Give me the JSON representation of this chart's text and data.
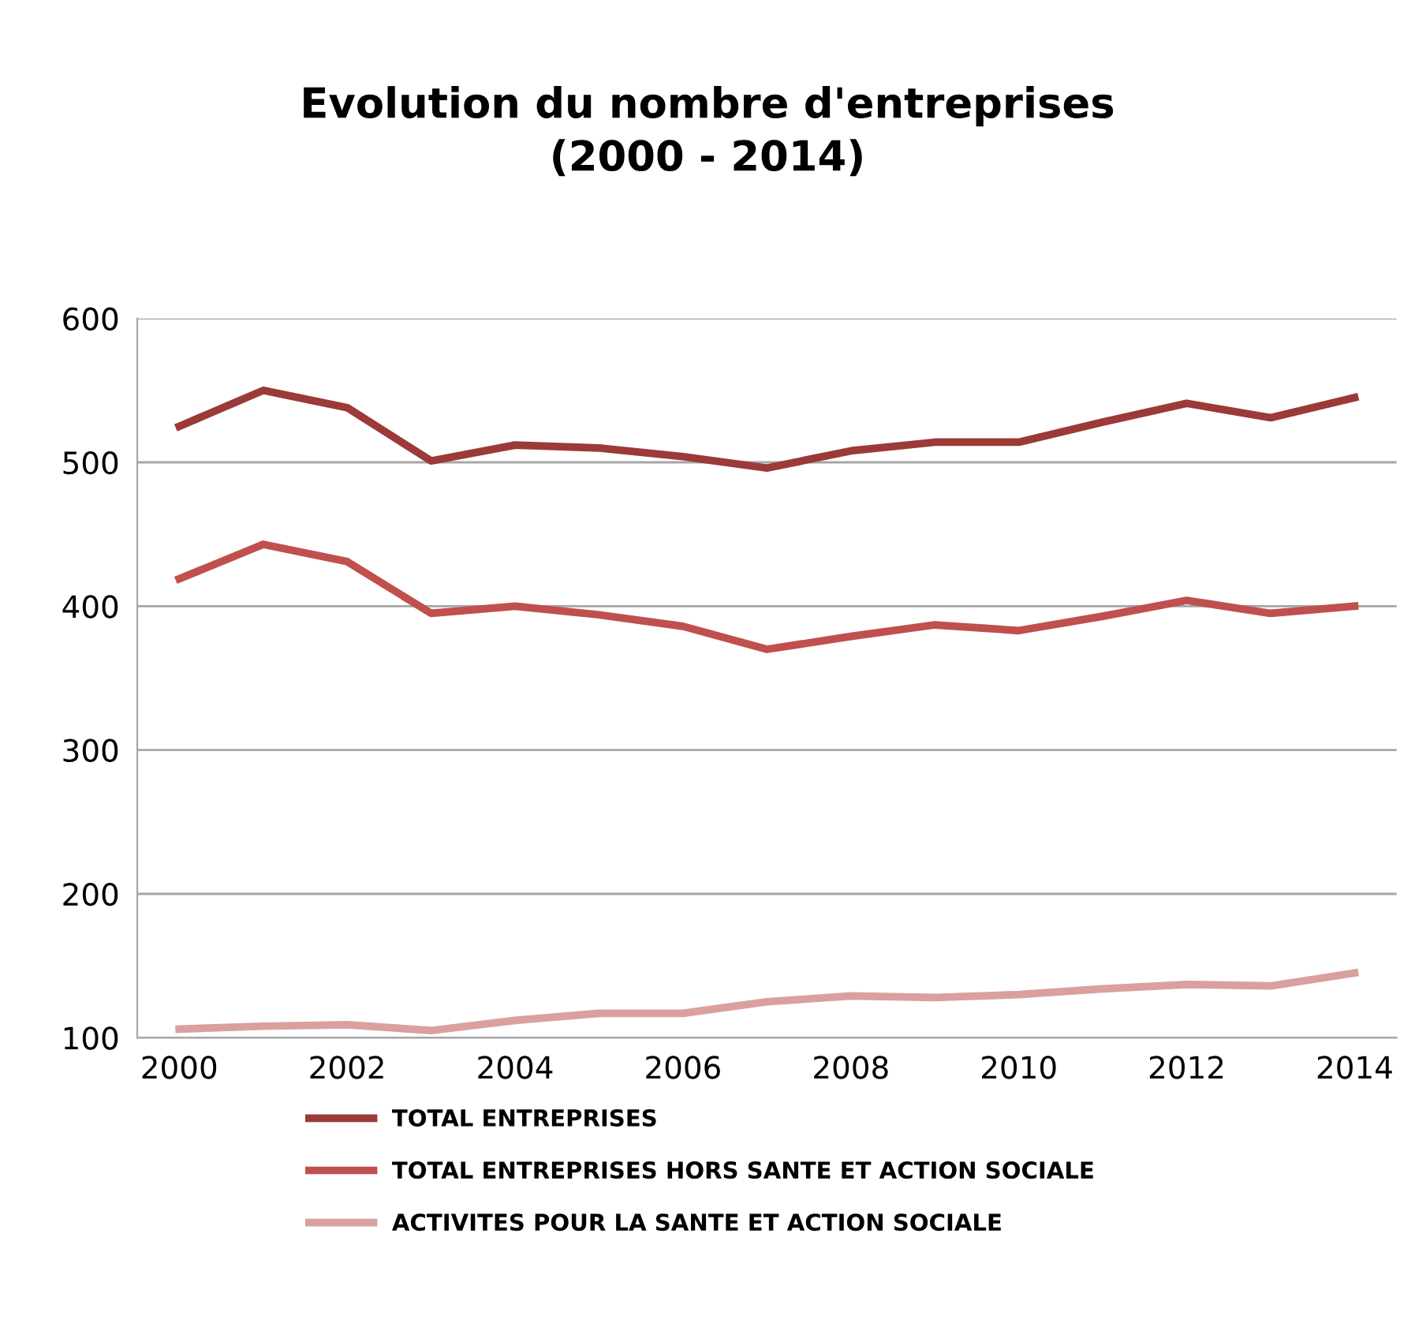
{
  "chart_data": {
    "type": "line",
    "title": "Evolution du nombre d'entreprises\n(2000 - 2014)",
    "x": [
      2000,
      2001,
      2002,
      2003,
      2004,
      2005,
      2006,
      2007,
      2008,
      2009,
      2010,
      2011,
      2012,
      2013,
      2014
    ],
    "series": [
      {
        "name": "TOTAL ENTREPRISES",
        "color": "#9b3a38",
        "values": [
          525,
          550,
          538,
          501,
          512,
          510,
          504,
          496,
          508,
          514,
          514,
          528,
          541,
          531,
          545
        ]
      },
      {
        "name": "TOTAL ENTREPRISES HORS SANTE ET ACTION SOCIALE",
        "color": "#c0504d",
        "values": [
          419,
          443,
          431,
          395,
          400,
          394,
          386,
          370,
          379,
          387,
          383,
          393,
          404,
          395,
          400
        ]
      },
      {
        "name": "ACTIVITES POUR LA SANTE ET ACTION SOCIALE",
        "color": "#d9a09f",
        "values": [
          106,
          108,
          109,
          105,
          112,
          117,
          117,
          125,
          129,
          128,
          130,
          134,
          137,
          136,
          145
        ]
      }
    ],
    "xlim": [
      1999.5,
      2014.5
    ],
    "xticks": [
      2000,
      2002,
      2004,
      2006,
      2008,
      2010,
      2012,
      2014
    ],
    "ylim": [
      100,
      600
    ],
    "yticks": [
      100,
      200,
      300,
      400,
      500,
      600
    ],
    "grid": "y",
    "legend": "bottom",
    "marker": "none",
    "line_style": "solid"
  }
}
